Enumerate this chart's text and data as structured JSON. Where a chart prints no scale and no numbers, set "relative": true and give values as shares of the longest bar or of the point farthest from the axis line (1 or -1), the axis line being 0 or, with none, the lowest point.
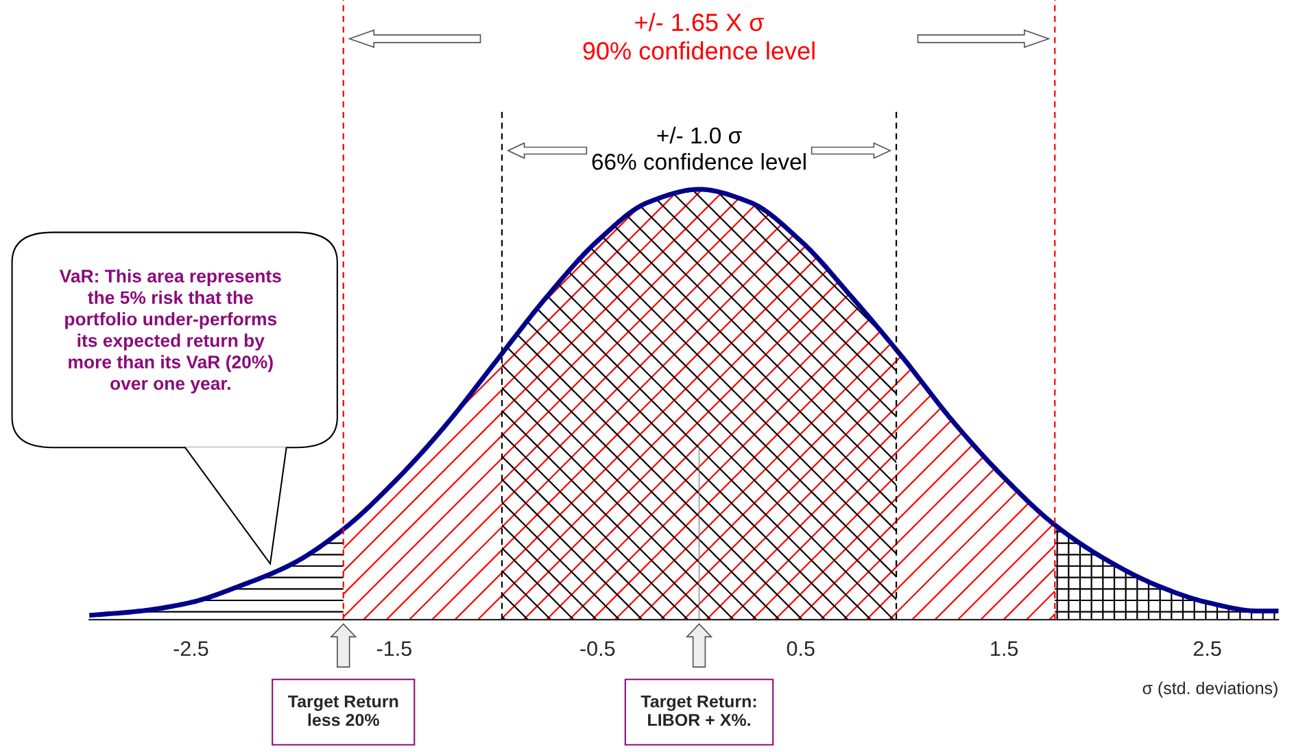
{
  "chart_data": {
    "type": "line",
    "relative": true,
    "xlabel": "σ (std. deviations)",
    "xlim": [
      -3.0,
      2.85
    ],
    "xticks": [
      -2.5,
      -1.5,
      -0.5,
      0.5,
      1.5,
      2.5
    ],
    "x": [
      -3.0,
      -2.75,
      -2.5,
      -2.25,
      -2.0,
      -1.75,
      -1.5,
      -1.25,
      -1.0,
      -0.75,
      -0.5,
      -0.25,
      0.0,
      0.25,
      0.5,
      0.75,
      1.0,
      1.25,
      1.5,
      1.75,
      2.0,
      2.25,
      2.5,
      2.75,
      2.85
    ],
    "series": [
      {
        "color": "#00008b",
        "values": [
          0.01,
          0.02,
          0.04,
          0.08,
          0.13,
          0.21,
          0.32,
          0.45,
          0.6,
          0.75,
          0.88,
          0.97,
          1.0,
          0.97,
          0.88,
          0.75,
          0.61,
          0.46,
          0.33,
          0.22,
          0.14,
          0.08,
          0.04,
          0.02,
          0.02
        ]
      }
    ],
    "ref_lines": [
      {
        "axis": "x",
        "value": -1.75,
        "color": "#ff0000",
        "line_style": "dashed",
        "label": "+/- 1.65 X σ\n90% confidence level"
      },
      {
        "axis": "x",
        "value": 1.75,
        "color": "#ff0000",
        "line_style": "dashed"
      },
      {
        "axis": "x",
        "value": -0.97,
        "color": "#000000",
        "line_style": "dashed",
        "label": "+/- 1.0 σ\n66% confidence level"
      },
      {
        "axis": "x",
        "value": 0.97,
        "color": "#000000",
        "line_style": "dashed"
      },
      {
        "axis": "x",
        "value": 0.0,
        "color": "#888888",
        "line_style": "solid"
      }
    ],
    "annotations": [
      "VaR: This area represents\nthe 5% risk that the\nportfolio under-performs\nits expected return by\nmore than its VaR (20%)\nover one year.",
      "Target Return\nless 20%",
      "Target Return:\nLIBOR + X%."
    ],
    "grid": false,
    "legend": false,
    "line_style": "solid",
    "marker": "none"
  }
}
